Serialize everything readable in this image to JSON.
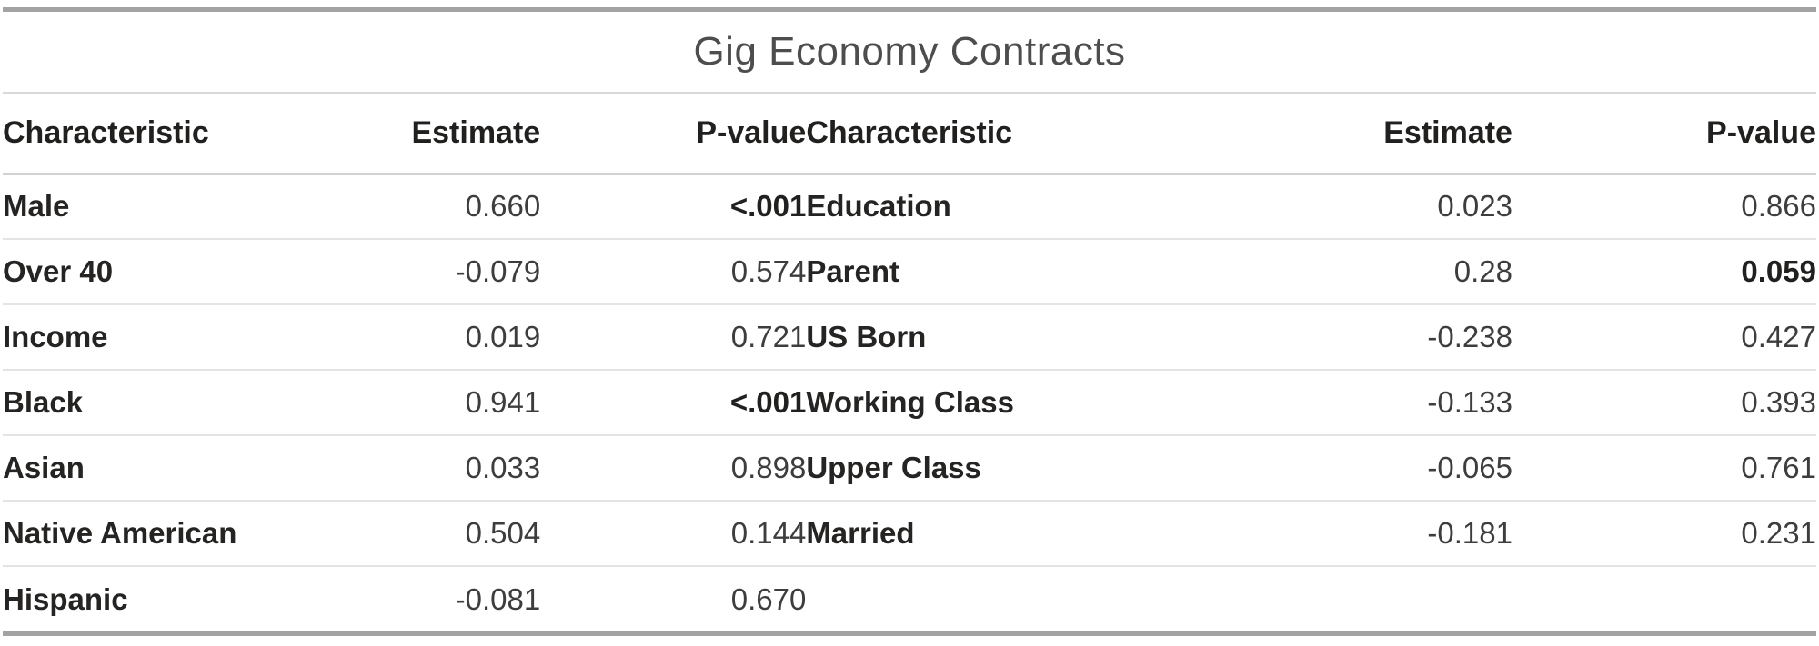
{
  "chart_data": {
    "type": "table",
    "title": "Gig Economy Contracts",
    "columns": [
      "Characteristic",
      "Estimate",
      "P-value",
      "Characteristic",
      "Estimate",
      "P-value"
    ],
    "rows": [
      {
        "left": {
          "characteristic": "Male",
          "estimate": "0.660",
          "p_value": "<.001",
          "p_bold": true
        },
        "right": {
          "characteristic": "Education",
          "estimate": "0.023",
          "p_value": "0.866",
          "p_bold": false
        }
      },
      {
        "left": {
          "characteristic": "Over 40",
          "estimate": "-0.079",
          "p_value": "0.574",
          "p_bold": false
        },
        "right": {
          "characteristic": "Parent",
          "estimate": "0.28",
          "p_value": "0.059",
          "p_bold": true
        }
      },
      {
        "left": {
          "characteristic": "Income",
          "estimate": "0.019",
          "p_value": "0.721",
          "p_bold": false
        },
        "right": {
          "characteristic": "US Born",
          "estimate": "-0.238",
          "p_value": "0.427",
          "p_bold": false
        }
      },
      {
        "left": {
          "characteristic": "Black",
          "estimate": "0.941",
          "p_value": "<.001",
          "p_bold": true
        },
        "right": {
          "characteristic": "Working Class",
          "estimate": "-0.133",
          "p_value": "0.393",
          "p_bold": false
        }
      },
      {
        "left": {
          "characteristic": "Asian",
          "estimate": "0.033",
          "p_value": "0.898",
          "p_bold": false
        },
        "right": {
          "characteristic": "Upper Class",
          "estimate": "-0.065",
          "p_value": "0.761",
          "p_bold": false
        }
      },
      {
        "left": {
          "characteristic": "Native American",
          "estimate": "0.504",
          "p_value": "0.144",
          "p_bold": false
        },
        "right": {
          "characteristic": "Married",
          "estimate": "-0.181",
          "p_value": "0.231",
          "p_bold": false
        }
      },
      {
        "left": {
          "characteristic": "Hispanic",
          "estimate": "-0.081",
          "p_value": "0.670",
          "p_bold": false
        },
        "right": null
      }
    ]
  },
  "colors": {
    "outer_border": "#a3a3a3",
    "separator": "#e4e4e4",
    "header_separator": "#d2d2d2",
    "title_text": "#4d4d4d",
    "header_text": "#21201f",
    "body_text": "#3d3d3d"
  }
}
